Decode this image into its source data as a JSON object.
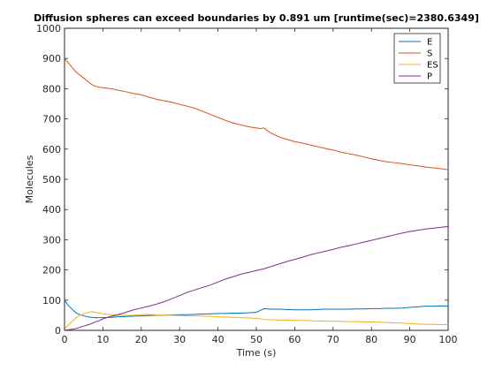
{
  "chart_data": {
    "type": "line",
    "title": "Diffusion spheres can exceed boundaries by 0.891 um [runtime(sec)=2380.6349]",
    "xlabel": "Time (s)",
    "ylabel": "Molecules",
    "xlim": [
      0,
      100
    ],
    "ylim": [
      0,
      1000
    ],
    "x_ticks": [
      0,
      10,
      20,
      30,
      40,
      50,
      60,
      70,
      80,
      90,
      100
    ],
    "y_ticks": [
      0,
      100,
      200,
      300,
      400,
      500,
      600,
      700,
      800,
      900,
      1000
    ],
    "grid": false,
    "legend_position": "top-right",
    "x": [
      0,
      1,
      2,
      3,
      4,
      5,
      6,
      7,
      8,
      9,
      10,
      12,
      14,
      16,
      18,
      20,
      22,
      24,
      26,
      28,
      30,
      32,
      34,
      36,
      38,
      40,
      42,
      44,
      46,
      48,
      50,
      51,
      52,
      53,
      54,
      56,
      58,
      60,
      62,
      64,
      66,
      68,
      70,
      72,
      74,
      76,
      78,
      80,
      82,
      84,
      86,
      88,
      90,
      92,
      94,
      96,
      98,
      100
    ],
    "series": [
      {
        "name": "E",
        "color": "#0072BD",
        "values": [
          100,
          82,
          70,
          58,
          52,
          48,
          45,
          43,
          42,
          42,
          42,
          43,
          45,
          46,
          47,
          48,
          49,
          50,
          50,
          51,
          52,
          52,
          53,
          54,
          55,
          56,
          56,
          57,
          57,
          58,
          60,
          66,
          72,
          71,
          70,
          70,
          69,
          68,
          68,
          68,
          69,
          70,
          70,
          70,
          70,
          71,
          71,
          72,
          72,
          73,
          73,
          74,
          76,
          78,
          80,
          80,
          81,
          80
        ]
      },
      {
        "name": "S",
        "color": "#D95319",
        "values": [
          900,
          885,
          870,
          855,
          845,
          835,
          825,
          815,
          808,
          805,
          803,
          800,
          795,
          790,
          784,
          780,
          772,
          765,
          760,
          755,
          748,
          742,
          735,
          725,
          715,
          705,
          695,
          686,
          680,
          674,
          670,
          668,
          670,
          660,
          652,
          640,
          632,
          625,
          620,
          614,
          608,
          602,
          597,
          590,
          585,
          580,
          574,
          568,
          563,
          558,
          555,
          552,
          548,
          545,
          541,
          538,
          535,
          532
        ]
      },
      {
        "name": "ES",
        "color": "#EDB120",
        "values": [
          5,
          18,
          30,
          42,
          50,
          55,
          58,
          62,
          60,
          57,
          55,
          52,
          50,
          49,
          50,
          52,
          53,
          51,
          50,
          50,
          49,
          48,
          48,
          47,
          46,
          45,
          44,
          43,
          42,
          41,
          40,
          38,
          36,
          35,
          35,
          34,
          34,
          33,
          33,
          32,
          31,
          31,
          30,
          30,
          29,
          29,
          28,
          28,
          27,
          26,
          25,
          24,
          22,
          21,
          20,
          20,
          19,
          19
        ]
      },
      {
        "name": "P",
        "color": "#7E2F8E",
        "values": [
          0,
          2,
          4,
          6,
          10,
          14,
          18,
          22,
          28,
          32,
          38,
          46,
          52,
          60,
          68,
          74,
          80,
          87,
          95,
          105,
          115,
          126,
          134,
          142,
          150,
          160,
          170,
          178,
          186,
          192,
          198,
          201,
          204,
          208,
          212,
          220,
          228,
          235,
          242,
          250,
          256,
          262,
          268,
          275,
          280,
          286,
          292,
          298,
          304,
          310,
          316,
          322,
          327,
          331,
          335,
          338,
          341,
          344
        ]
      }
    ]
  }
}
